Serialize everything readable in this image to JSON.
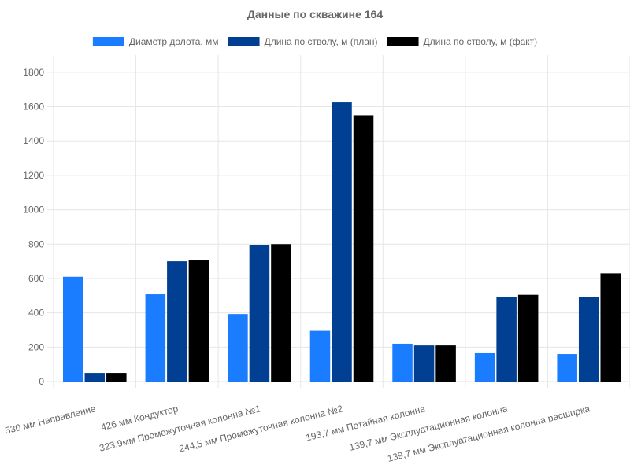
{
  "chart_data": {
    "type": "bar",
    "title": "Данные по скважине 164",
    "xlabel": "",
    "ylabel": "",
    "ylim": [
      0,
      1900
    ],
    "yticks": [
      0,
      200,
      400,
      600,
      800,
      1000,
      1200,
      1400,
      1600,
      1800
    ],
    "grid": true,
    "legend_position": "top",
    "categories": [
      "530 мм Направление",
      "426 мм Кондуктор",
      "323,9мм Промежуточная колонна №1",
      "244,5 мм Промежуточная колонна №2",
      "193,7 мм Потайная колонна",
      "139,7 мм Эксплуатационная колонна",
      "139,7 мм Эксплуатационная колонна расширка"
    ],
    "series": [
      {
        "name": "Диаметр долота, мм",
        "color": "#1a7cff",
        "values": [
          610,
          508,
          393,
          295,
          220,
          165,
          160
        ]
      },
      {
        "name": "Длина по стволу, м (план)",
        "color": "#003f91",
        "values": [
          50,
          700,
          795,
          1625,
          210,
          490,
          490
        ]
      },
      {
        "name": "Длина по стволу, м (факт)",
        "color": "#000000",
        "values": [
          50,
          705,
          800,
          1550,
          210,
          505,
          630
        ]
      }
    ]
  }
}
